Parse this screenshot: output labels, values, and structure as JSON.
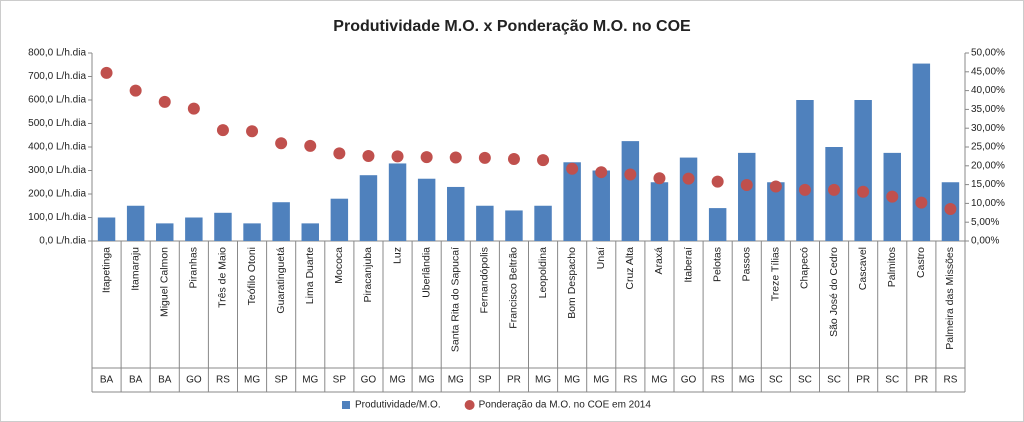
{
  "chart_data": {
    "type": "bar",
    "title": "Produtividade M.O. x Ponderação M.O. no COE",
    "categories": [
      "Itapetinga",
      "Itamaraju",
      "Miguel Calmon",
      "Piranhas",
      "Três de Maio",
      "Teófilo Otoni",
      "Guaratinguetá",
      "Lima Duarte",
      "Mococa",
      "Piracanjuba",
      "Luz",
      "Uberlândia",
      "Santa Rita do Sapucaí",
      "Fernandópolis",
      "Francisco Beltrão",
      "Leopoldina",
      "Bom Despacho",
      "Unaí",
      "Cruz Alta",
      "Araxá",
      "Itaberaí",
      "Pelotas",
      "Passos",
      "Treze Tílias",
      "Chapecó",
      "São José do Cedro",
      "Cascavel",
      "Palmitos",
      "Castro",
      "Palmeira das Missões"
    ],
    "states": [
      "BA",
      "BA",
      "BA",
      "GO",
      "RS",
      "MG",
      "SP",
      "MG",
      "SP",
      "GO",
      "MG",
      "MG",
      "MG",
      "SP",
      "PR",
      "MG",
      "MG",
      "MG",
      "RS",
      "MG",
      "GO",
      "RS",
      "MG",
      "SC",
      "SC",
      "SC",
      "PR",
      "SC",
      "PR",
      "RS"
    ],
    "series": [
      {
        "name": "Produtividade/M.O.",
        "type": "bar",
        "color": "#4f81bd",
        "values": [
          100,
          150,
          75,
          100,
          120,
          75,
          165,
          75,
          180,
          280,
          330,
          265,
          230,
          150,
          130,
          150,
          335,
          300,
          425,
          250,
          355,
          140,
          375,
          250,
          600,
          400,
          600,
          375,
          755,
          250
        ]
      },
      {
        "name": "Ponderação da M.O. no COE em 2014",
        "type": "scatter",
        "axis": "y2",
        "color": "#c0504d",
        "values": [
          44.7,
          40.0,
          37.0,
          35.2,
          29.5,
          29.2,
          26.0,
          25.3,
          23.3,
          22.6,
          22.5,
          22.3,
          22.2,
          22.1,
          21.8,
          21.5,
          19.2,
          18.3,
          17.7,
          16.7,
          16.6,
          15.8,
          14.9,
          14.5,
          13.6,
          13.6,
          13.1,
          11.8,
          10.2,
          8.5
        ]
      }
    ],
    "ylim": [
      0,
      800
    ],
    "yticks": [
      {
        "value": 0,
        "label": "0,0 L/h.dia"
      },
      {
        "value": 100,
        "label": "100,0 L/h.dia"
      },
      {
        "value": 200,
        "label": "200,0 L/h.dia"
      },
      {
        "value": 300,
        "label": "300,0 L/h.dia"
      },
      {
        "value": 400,
        "label": "400,0 L/h.dia"
      },
      {
        "value": 500,
        "label": "500,0 L/h.dia"
      },
      {
        "value": 600,
        "label": "600,0 L/h.dia"
      },
      {
        "value": 700,
        "label": "700,0 L/h.dia"
      },
      {
        "value": 800,
        "label": "800,0 L/h.dia"
      }
    ],
    "y2lim": [
      0,
      50
    ],
    "y2ticks": [
      {
        "value": 0,
        "label": "0,00%"
      },
      {
        "value": 5,
        "label": "5,00%"
      },
      {
        "value": 10,
        "label": "10,00%"
      },
      {
        "value": 15,
        "label": "15,00%"
      },
      {
        "value": 20,
        "label": "20,00%"
      },
      {
        "value": 25,
        "label": "25,00%"
      },
      {
        "value": 30,
        "label": "30,00%"
      },
      {
        "value": 35,
        "label": "35,00%"
      },
      {
        "value": 40,
        "label": "40,00%"
      },
      {
        "value": 45,
        "label": "45,00%"
      },
      {
        "value": 50,
        "label": "50,00%"
      }
    ],
    "legend": "bottom"
  }
}
